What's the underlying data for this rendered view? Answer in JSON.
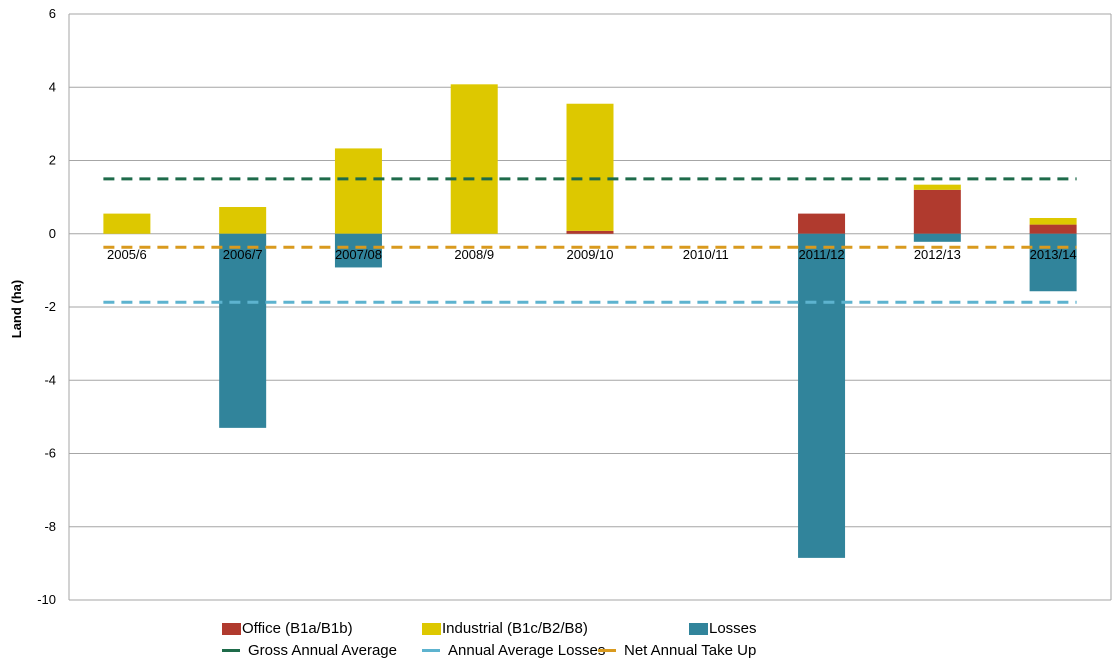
{
  "chart_data": {
    "type": "bar",
    "stacked": true,
    "ylabel": "Land (ha)",
    "ylim": [
      -10,
      6
    ],
    "yticks": [
      6,
      4,
      2,
      0,
      -2,
      -4,
      -6,
      -8,
      -10
    ],
    "grid": true,
    "legend_position": "bottom",
    "categories": [
      "2005/6",
      "2006/7",
      "2007/08",
      "2008/9",
      "2009/10",
      "2010/11",
      "2011/12",
      "2012/13",
      "2013/14"
    ],
    "series": [
      {
        "name": "Office (B1a/B1b)",
        "color": "#B03A2E",
        "values": [
          0,
          0,
          0,
          0,
          0.08,
          0,
          0.55,
          1.2,
          0.25
        ]
      },
      {
        "name": "Industrial (B1c/B2/B8)",
        "color": "#DDC800",
        "values": [
          0.55,
          0.73,
          2.33,
          4.08,
          3.47,
          0,
          0,
          0.14,
          0.18
        ]
      },
      {
        "name": "Losses",
        "color": "#31849B",
        "values": [
          0,
          -5.3,
          -0.92,
          0,
          0,
          0,
          -8.85,
          -0.22,
          -1.57
        ]
      }
    ],
    "reference_lines": [
      {
        "name": "Gross Annual Average",
        "color": "#1E6B4A",
        "value": 1.5
      },
      {
        "name": "Annual Average Losses",
        "color": "#5DB3CF",
        "value": -1.87
      },
      {
        "name": "Net Annual Take Up",
        "color": "#D99A1E",
        "value": -0.37
      }
    ]
  }
}
